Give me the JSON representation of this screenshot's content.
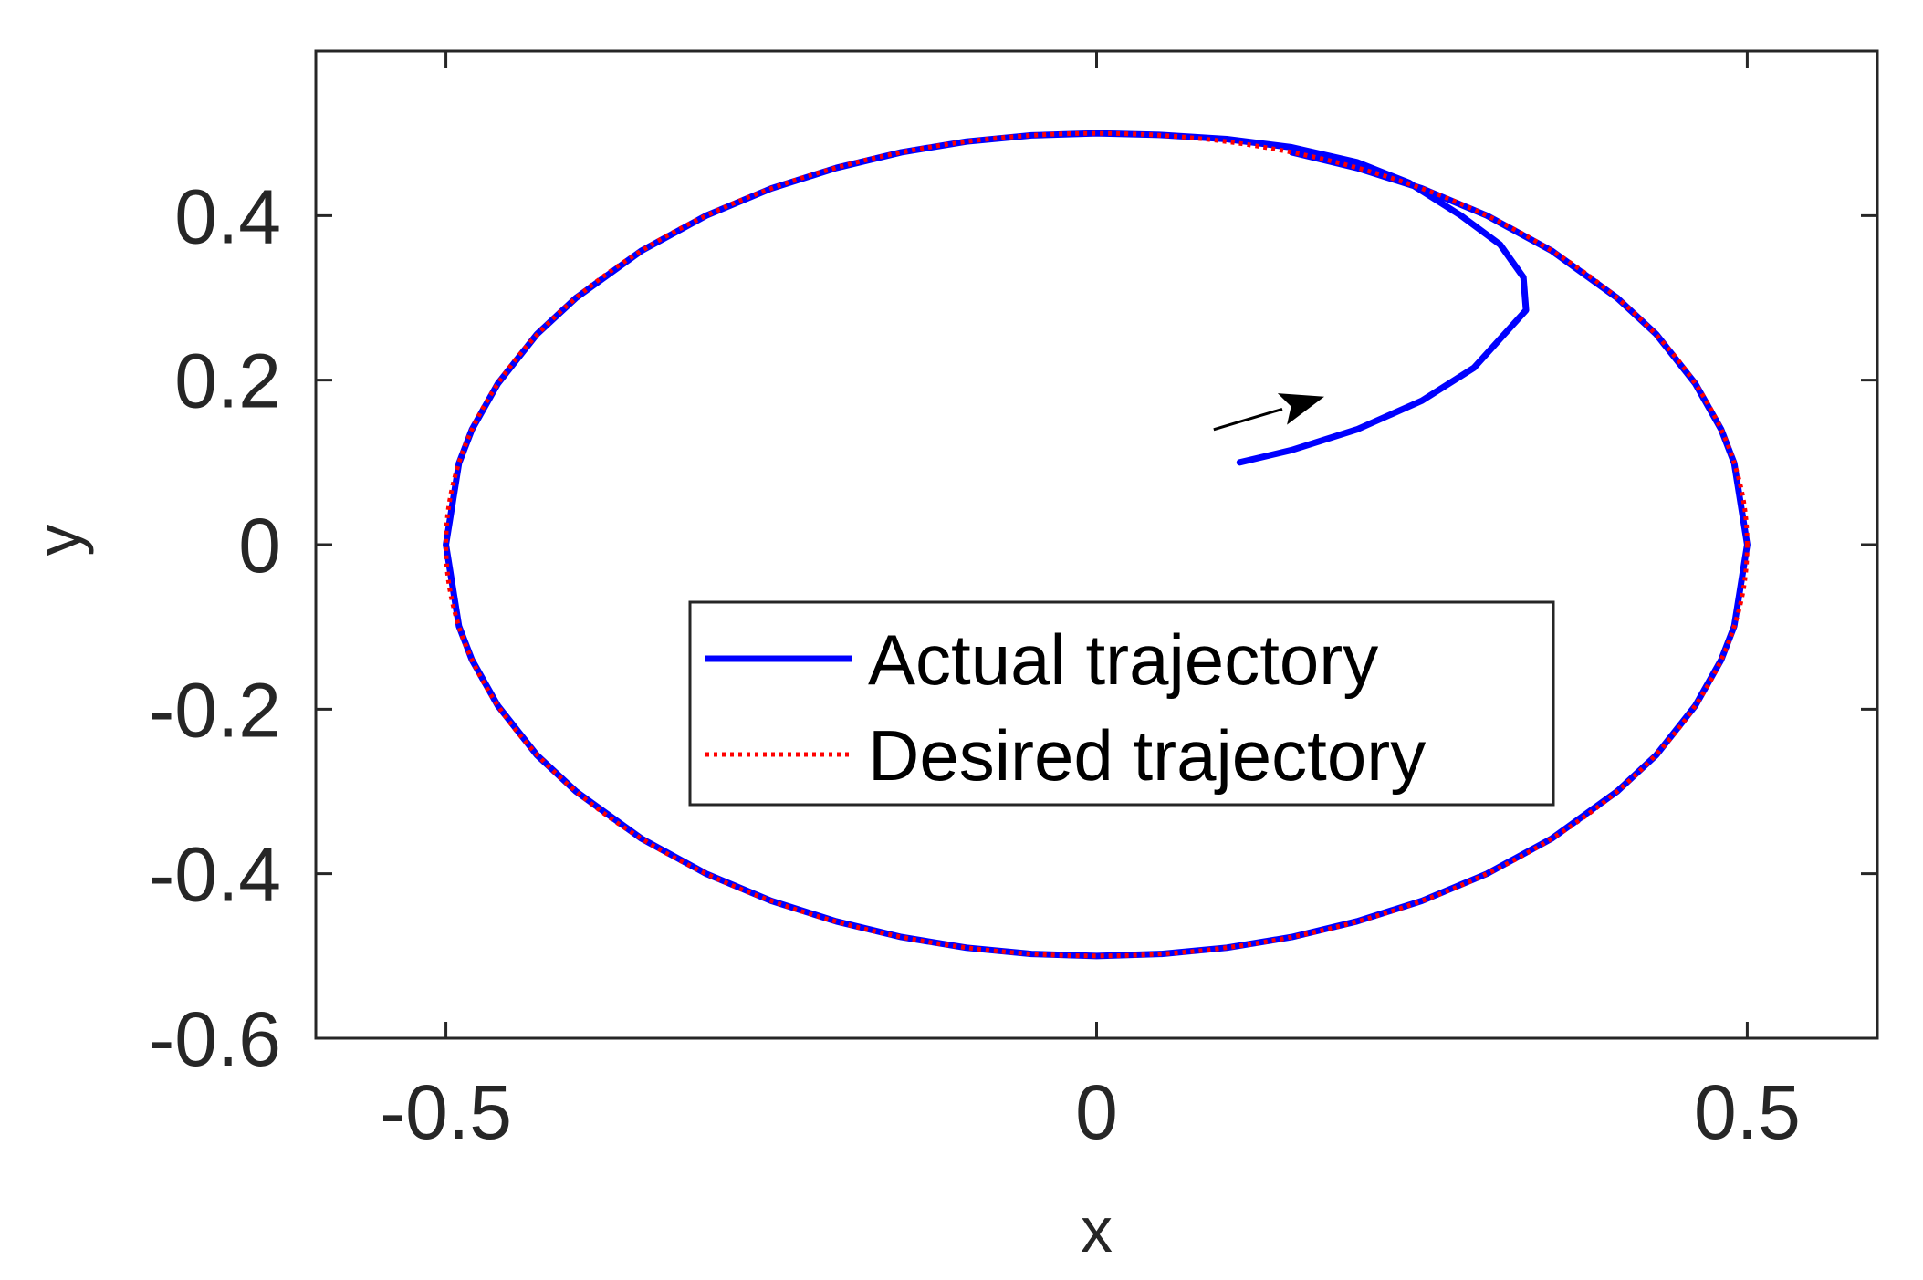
{
  "chart_data": {
    "type": "line",
    "title": "",
    "xlabel": "x",
    "ylabel": "y",
    "xlim": [
      -0.6,
      0.6
    ],
    "ylim": [
      -0.6,
      0.6
    ],
    "xticks": [
      -0.5,
      0,
      0.5
    ],
    "xtick_labels": [
      "-0.5",
      "0",
      "0.5"
    ],
    "yticks": [
      -0.6,
      -0.4,
      -0.2,
      0,
      0.2,
      0.4
    ],
    "ytick_labels": [
      "-0.6",
      "-0.4",
      "-0.2",
      "0",
      "0.2",
      "0.4"
    ],
    "grid": false,
    "box": true,
    "legend_position": "lower center inside",
    "series": [
      {
        "name": "Actual trajectory",
        "color": "#0000ff",
        "style": "solid",
        "points": [
          [
            0.11,
            0.1
          ],
          [
            0.15,
            0.115
          ],
          [
            0.2,
            0.14
          ],
          [
            0.25,
            0.175
          ],
          [
            0.29,
            0.215
          ],
          [
            0.31,
            0.25
          ],
          [
            0.33,
            0.285
          ],
          [
            0.328,
            0.325
          ],
          [
            0.31,
            0.365
          ],
          [
            0.28,
            0.4
          ],
          [
            0.24,
            0.44
          ],
          [
            0.2,
            0.465
          ],
          [
            0.15,
            0.483
          ],
          [
            0.1,
            0.493
          ],
          [
            0.05,
            0.498
          ],
          [
            0.0,
            0.5
          ],
          [
            -0.05,
            0.4975
          ],
          [
            -0.1,
            0.49
          ],
          [
            -0.15,
            0.477
          ],
          [
            -0.2,
            0.458
          ],
          [
            -0.25,
            0.433
          ],
          [
            -0.3,
            0.4
          ],
          [
            -0.35,
            0.357
          ],
          [
            -0.4,
            0.3
          ],
          [
            -0.43,
            0.256
          ],
          [
            -0.46,
            0.196
          ],
          [
            -0.48,
            0.14
          ],
          [
            -0.49,
            0.099
          ],
          [
            -0.5,
            0.0
          ],
          [
            -0.49,
            -0.099
          ],
          [
            -0.48,
            -0.14
          ],
          [
            -0.46,
            -0.196
          ],
          [
            -0.43,
            -0.256
          ],
          [
            -0.4,
            -0.3
          ],
          [
            -0.35,
            -0.357
          ],
          [
            -0.3,
            -0.4
          ],
          [
            -0.25,
            -0.433
          ],
          [
            -0.2,
            -0.458
          ],
          [
            -0.15,
            -0.477
          ],
          [
            -0.1,
            -0.49
          ],
          [
            -0.05,
            -0.4975
          ],
          [
            0.0,
            -0.5
          ],
          [
            0.05,
            -0.4975
          ],
          [
            0.1,
            -0.49
          ],
          [
            0.15,
            -0.477
          ],
          [
            0.2,
            -0.458
          ],
          [
            0.25,
            -0.433
          ],
          [
            0.3,
            -0.4
          ],
          [
            0.35,
            -0.357
          ],
          [
            0.4,
            -0.3
          ],
          [
            0.43,
            -0.256
          ],
          [
            0.46,
            -0.196
          ],
          [
            0.48,
            -0.14
          ],
          [
            0.49,
            -0.099
          ],
          [
            0.5,
            0.0
          ],
          [
            0.49,
            0.099
          ],
          [
            0.48,
            0.14
          ],
          [
            0.46,
            0.196
          ],
          [
            0.43,
            0.256
          ],
          [
            0.4,
            0.3
          ],
          [
            0.35,
            0.357
          ],
          [
            0.3,
            0.4
          ],
          [
            0.25,
            0.433
          ],
          [
            0.2,
            0.458
          ],
          [
            0.15,
            0.477
          ]
        ]
      },
      {
        "name": "Desired trajectory",
        "color": "#ff0000",
        "style": "dotted",
        "shape": "ellipse",
        "center": [
          0,
          0
        ],
        "radius_x": 0.5,
        "radius_y": 0.5
      }
    ],
    "annotations": [
      {
        "type": "arrow",
        "from": [
          0.09,
          0.14
        ],
        "to": [
          0.175,
          0.18
        ],
        "color": "#000000"
      }
    ]
  }
}
